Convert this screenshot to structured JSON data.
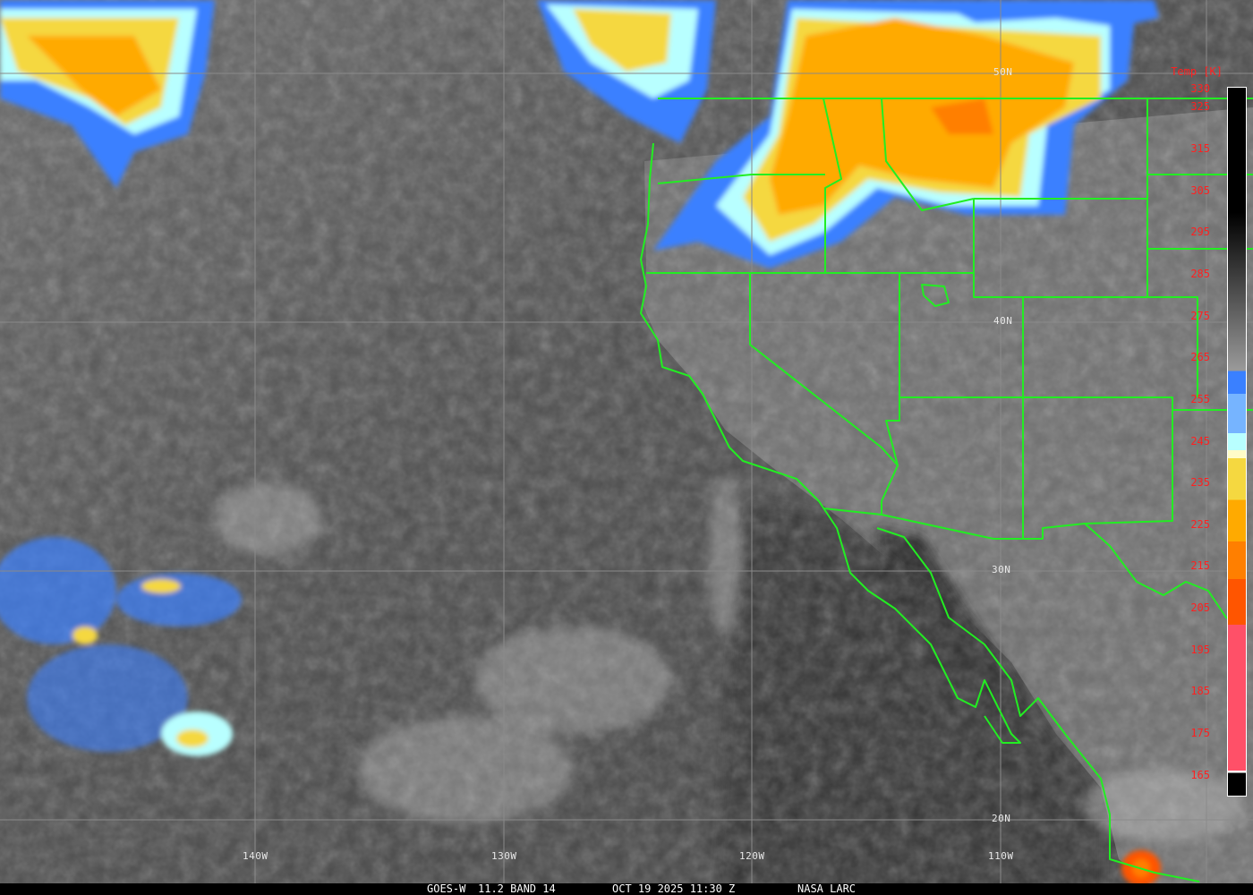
{
  "image": {
    "satellite": "GOES-W",
    "channel": "11.2 BAND 14",
    "datetime": "OCT 19 2025 11:30 Z",
    "credit": "NASA LARC"
  },
  "grid": {
    "latitudes": [
      "50N",
      "40N",
      "30N",
      "20N"
    ],
    "longitudes": [
      "140W",
      "130W",
      "120W",
      "110W"
    ]
  },
  "colorbar": {
    "title": "Temp [K]",
    "range_k": [
      160,
      330
    ],
    "tick_labels": [
      "330",
      "325",
      "315",
      "305",
      "295",
      "285",
      "275",
      "265",
      "255",
      "245",
      "235",
      "225",
      "215",
      "205",
      "195",
      "185",
      "175",
      "165"
    ],
    "stops": [
      {
        "k": 330,
        "color": "#000000"
      },
      {
        "k": 300,
        "color": "#000000"
      },
      {
        "k": 262,
        "color": "#9a9a9a"
      },
      {
        "k": 262,
        "color": "#3a80ff"
      },
      {
        "k": 256.5,
        "color": "#3a80ff"
      },
      {
        "k": 256.5,
        "color": "#76b4ff"
      },
      {
        "k": 247,
        "color": "#76b4ff"
      },
      {
        "k": 247,
        "color": "#b8ffff"
      },
      {
        "k": 243,
        "color": "#b8ffff"
      },
      {
        "k": 243,
        "color": "#fffcc8"
      },
      {
        "k": 241,
        "color": "#fffcc8"
      },
      {
        "k": 241,
        "color": "#f5d840"
      },
      {
        "k": 231,
        "color": "#f5d840"
      },
      {
        "k": 231,
        "color": "#ffaa00"
      },
      {
        "k": 221,
        "color": "#ffaa00"
      },
      {
        "k": 221,
        "color": "#ff7f00"
      },
      {
        "k": 212,
        "color": "#ff7f00"
      },
      {
        "k": 212,
        "color": "#ff5500"
      },
      {
        "k": 201,
        "color": "#ff5500"
      },
      {
        "k": 201,
        "color": "#ff5068"
      },
      {
        "k": 166,
        "color": "#ff5068"
      },
      {
        "k": 166,
        "color": "#ffffff"
      },
      {
        "k": 165.5,
        "color": "#ffffff"
      },
      {
        "k": 165.5,
        "color": "#000000"
      },
      {
        "k": 160,
        "color": "#000000"
      }
    ]
  },
  "colors": {
    "borders": "#22ee22",
    "grid": "#8a8a8a",
    "label_text": "#ff2020"
  }
}
